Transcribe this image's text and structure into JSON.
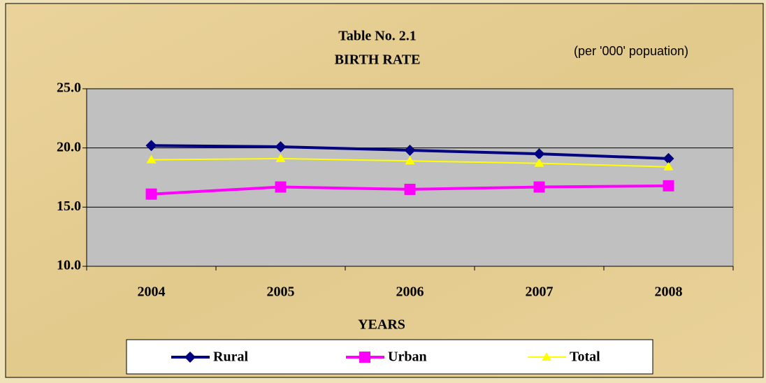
{
  "chart_data": {
    "type": "line",
    "title": "Table No. 2.1",
    "subtitle": "BIRTH RATE",
    "annotation": "(per '000'  popuation)",
    "x_label": "YEARS",
    "categories": [
      "2004",
      "2005",
      "2006",
      "2007",
      "2008"
    ],
    "series": [
      {
        "name": "Rural",
        "color": "#000080",
        "marker": "diamond",
        "values": [
          20.2,
          20.1,
          19.8,
          19.5,
          19.1
        ]
      },
      {
        "name": "Urban",
        "color": "#ff00ff",
        "marker": "square",
        "values": [
          16.1,
          16.7,
          16.5,
          16.7,
          16.8
        ]
      },
      {
        "name": "Total",
        "color": "#ffff00",
        "marker": "triangle",
        "values": [
          19.0,
          19.1,
          18.9,
          18.7,
          18.4
        ]
      }
    ],
    "ylim": [
      10,
      25
    ],
    "yticks": [
      {
        "value": 10,
        "label": "10.0"
      },
      {
        "value": 15,
        "label": "15.0"
      },
      {
        "value": 20,
        "label": "20.0"
      },
      {
        "value": 25,
        "label": "25.0"
      }
    ],
    "grid": true,
    "legend": "bottom"
  }
}
